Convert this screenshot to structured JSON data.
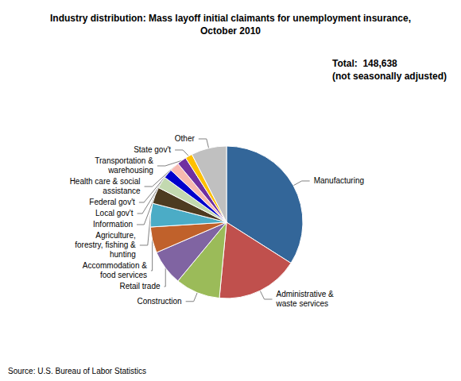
{
  "chart_data": {
    "type": "pie",
    "title": "Industry distribution: Mass layoff initial claimants for unemployment insurance,\nOctober 2010",
    "categories": [
      "Manufacturing",
      "Administrative &\nwaste services",
      "Construction",
      "Retail trade",
      "Accommodation &\nfood services",
      "Agriculture,\nforestry, fishing &\nhunting",
      "Information",
      "Local gov't",
      "Federal gov't",
      "Health care & social\nassistance",
      "Transportation &\nwarehousing",
      "State gov't",
      "Other"
    ],
    "values": [
      34.0,
      17.5,
      9.5,
      7.5,
      5.5,
      5.0,
      3.5,
      2.5,
      2.0,
      2.0,
      2.0,
      1.5,
      7.5
    ],
    "colors": [
      "#336699",
      "#c0504d",
      "#9bbb59",
      "#8064a2",
      "#c0612b",
      "#4bacc6",
      "#4d3b20",
      "#c3d9b0",
      "#0000cc",
      "#f7b9b0",
      "#7030a0",
      "#ffc000",
      "#c0c0c0"
    ],
    "annotations": [
      "Total:  148,638\n(not seasonally adjusted)",
      "Source: U.S. Bureau of Labor Statistics"
    ]
  }
}
